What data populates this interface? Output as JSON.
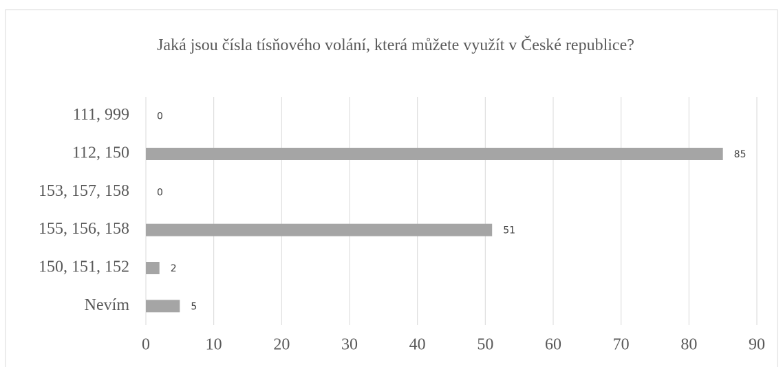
{
  "chart_data": {
    "type": "bar",
    "orientation": "horizontal",
    "title": "Jaká jsou čísla tísňového volání, která můžete využít v České republice?",
    "categories": [
      "111, 999",
      "112, 150",
      "153, 157, 158",
      "155, 156, 158",
      "150, 151, 152",
      "Nevím"
    ],
    "values": [
      0,
      85,
      0,
      51,
      2,
      5
    ],
    "color": "#a5a5a5",
    "xlim": [
      0,
      90
    ],
    "xticks": [
      0,
      10,
      20,
      30,
      40,
      50,
      60,
      70,
      80,
      90
    ],
    "grid": true
  }
}
